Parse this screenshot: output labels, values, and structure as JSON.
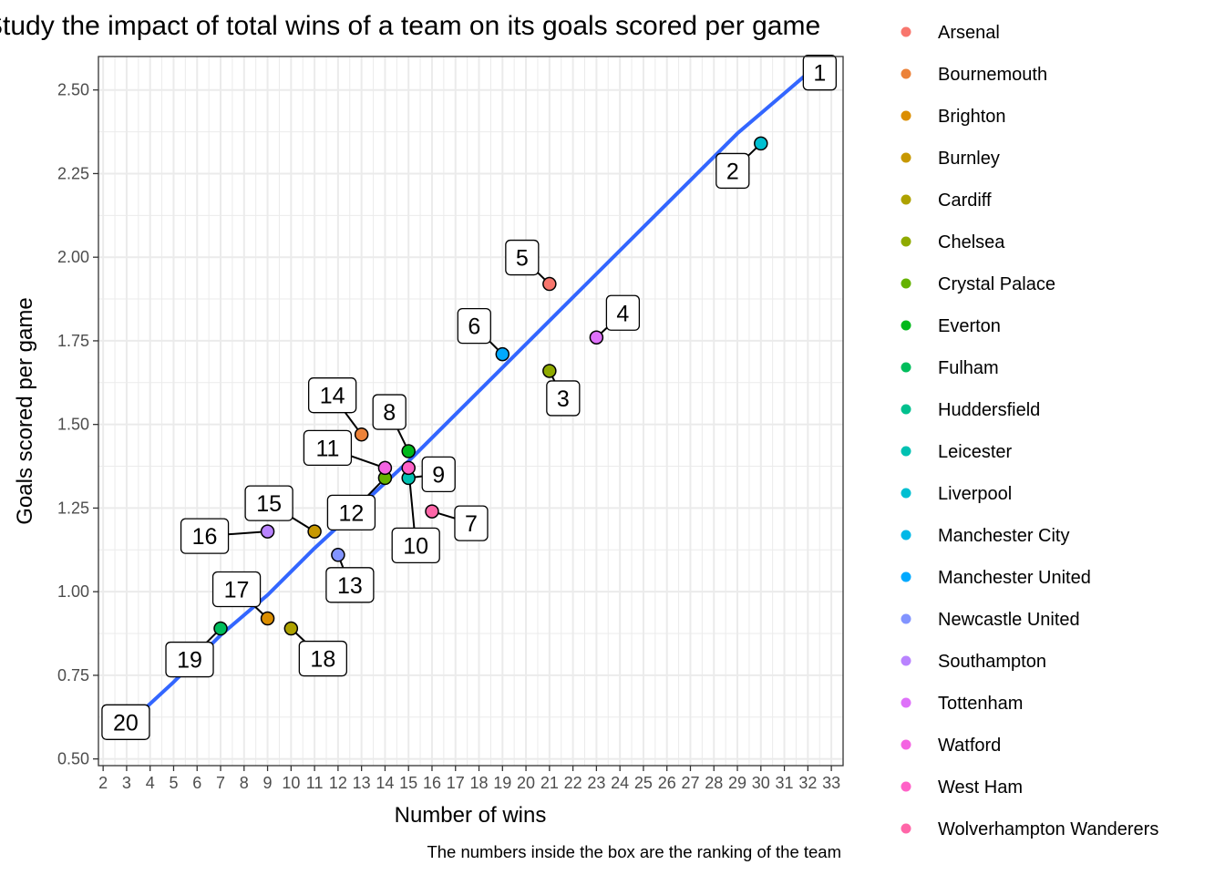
{
  "chart_data": {
    "type": "scatter",
    "title": "Study the impact of total wins of a team on its goals scored per game",
    "xlabel": "Number of wins",
    "ylabel": "Goals scored per game",
    "caption": "The numbers inside the box are the ranking of the team",
    "xlim": [
      1.8,
      33.5
    ],
    "ylim": [
      0.48,
      2.6
    ],
    "x_ticks": [
      "2",
      "3",
      "4",
      "5",
      "6",
      "7",
      "8",
      "9",
      "10",
      "11",
      "12",
      "13",
      "14",
      "15",
      "16",
      "17",
      "18",
      "19",
      "20",
      "21",
      "22",
      "23",
      "24",
      "25",
      "26",
      "27",
      "28",
      "29",
      "30",
      "31",
      "32",
      "33"
    ],
    "y_ticks": [
      "0.50",
      "0.75",
      "1.00",
      "1.25",
      "1.50",
      "1.75",
      "2.00",
      "2.25",
      "2.50"
    ],
    "grid": true,
    "legend_position": "right",
    "series": [
      {
        "name": "Arsenal",
        "color": "#F8766D",
        "x": 21,
        "y": 1.92,
        "rank": "5"
      },
      {
        "name": "Bournemouth",
        "color": "#EC8239",
        "x": 13,
        "y": 1.47,
        "rank": "14"
      },
      {
        "name": "Brighton",
        "color": "#DB8E00",
        "x": 9,
        "y": 0.92,
        "rank": "17"
      },
      {
        "name": "Burnley",
        "color": "#C79800",
        "x": 11,
        "y": 1.18,
        "rank": "15"
      },
      {
        "name": "Cardiff",
        "color": "#AEA200",
        "x": 10,
        "y": 0.89,
        "rank": "18"
      },
      {
        "name": "Chelsea",
        "color": "#8FAA00",
        "x": 21,
        "y": 1.66,
        "rank": "3"
      },
      {
        "name": "Crystal Palace",
        "color": "#64B200",
        "x": 14,
        "y": 1.34,
        "rank": "12"
      },
      {
        "name": "Everton",
        "color": "#00B81B",
        "x": 15,
        "y": 1.42,
        "rank": "8"
      },
      {
        "name": "Fulham",
        "color": "#00BD5C",
        "x": 7,
        "y": 0.89,
        "rank": "19"
      },
      {
        "name": "Huddersfield",
        "color": "#00C08E",
        "x": 3,
        "y": 0.58,
        "rank": "20"
      },
      {
        "name": "Leicester",
        "color": "#00C1B2",
        "x": 15,
        "y": 1.34,
        "rank": "9"
      },
      {
        "name": "Liverpool",
        "color": "#00BFD1",
        "x": 30,
        "y": 2.34,
        "rank": "2"
      },
      {
        "name": "Manchester City",
        "color": "#00B8E7",
        "x": 32,
        "y": 2.5,
        "rank": "1"
      },
      {
        "name": "Manchester United",
        "color": "#00A9FF",
        "x": 19,
        "y": 1.71,
        "rank": "6"
      },
      {
        "name": "Newcastle United",
        "color": "#8294FF",
        "x": 12,
        "y": 1.11,
        "rank": "13"
      },
      {
        "name": "Southampton",
        "color": "#B983FF",
        "x": 9,
        "y": 1.18,
        "rank": "16"
      },
      {
        "name": "Tottenham",
        "color": "#DE71F9",
        "x": 23,
        "y": 1.76,
        "rank": "4"
      },
      {
        "name": "Watford",
        "color": "#F464E2",
        "x": 14,
        "y": 1.37,
        "rank": "11"
      },
      {
        "name": "West Ham",
        "color": "#FF61C7",
        "x": 15,
        "y": 1.37,
        "rank": "10"
      },
      {
        "name": "Wolverhampton Wanderers",
        "color": "#FF66A8",
        "x": 16,
        "y": 1.24,
        "rank": "7"
      }
    ],
    "trend_line": {
      "color": "#3366FF",
      "x": [
        3,
        5,
        7,
        9,
        11,
        13,
        15,
        17,
        19,
        21,
        23,
        25,
        27,
        29,
        31,
        32
      ],
      "y": [
        0.6,
        0.73,
        0.87,
        0.99,
        1.13,
        1.26,
        1.39,
        1.53,
        1.67,
        1.81,
        1.95,
        2.09,
        2.23,
        2.37,
        2.49,
        2.55
      ]
    }
  }
}
